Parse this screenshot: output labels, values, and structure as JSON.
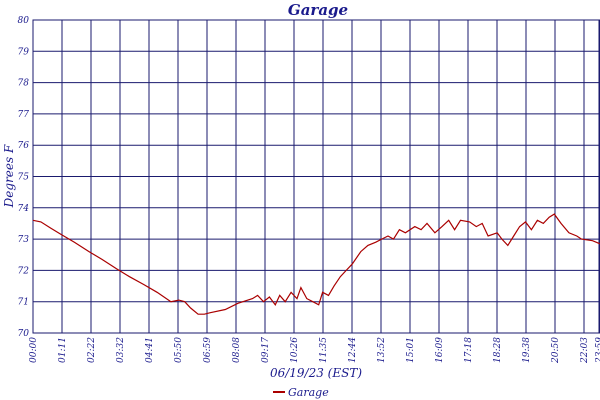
{
  "chart_data": {
    "type": "line",
    "title": "Garage",
    "xlabel": "06/19/23 (EST)",
    "ylabel": "Degrees F",
    "ylim": [
      70,
      80
    ],
    "y_ticks": [
      "70",
      "71",
      "72",
      "73",
      "74",
      "75",
      "76",
      "77",
      "78",
      "79",
      "80"
    ],
    "x_ticks": [
      "00:00",
      "01:11",
      "02:22",
      "03:32",
      "04:41",
      "05:50",
      "06:59",
      "08:08",
      "09:17",
      "10:26",
      "11:35",
      "12:44",
      "13:52",
      "15:01",
      "16:09",
      "17:18",
      "18:28",
      "19:38",
      "20:50",
      "22:03",
      "23:12",
      "23:59"
    ],
    "grid": true,
    "legend_position": "bottom-center",
    "series": [
      {
        "name": "Garage",
        "color": "#aa0000",
        "x": [
          "00:00",
          "00:20",
          "00:45",
          "01:11",
          "01:45",
          "02:22",
          "02:55",
          "03:32",
          "04:05",
          "04:41",
          "05:15",
          "05:50",
          "06:10",
          "06:25",
          "06:40",
          "06:59",
          "07:15",
          "07:30",
          "08:08",
          "08:40",
          "09:17",
          "09:30",
          "09:45",
          "10:00",
          "10:15",
          "10:26",
          "10:40",
          "10:55",
          "11:10",
          "11:20",
          "11:35",
          "11:50",
          "12:05",
          "12:15",
          "12:30",
          "12:44",
          "13:00",
          "13:15",
          "13:30",
          "13:52",
          "14:10",
          "14:30",
          "14:45",
          "15:01",
          "15:15",
          "15:30",
          "15:45",
          "16:09",
          "16:25",
          "16:40",
          "17:00",
          "17:18",
          "17:35",
          "17:50",
          "18:05",
          "18:28",
          "18:45",
          "19:00",
          "19:15",
          "19:38",
          "19:50",
          "20:05",
          "20:20",
          "20:35",
          "20:50",
          "21:05",
          "21:20",
          "21:35",
          "21:50",
          "22:03",
          "22:20",
          "22:40",
          "23:00",
          "23:12",
          "23:40",
          "23:59"
        ],
        "y": [
          73.6,
          73.55,
          73.35,
          73.15,
          72.9,
          72.6,
          72.35,
          72.05,
          71.8,
          71.55,
          71.3,
          71.0,
          71.05,
          71.0,
          70.8,
          70.6,
          70.6,
          70.65,
          70.75,
          70.95,
          71.1,
          71.2,
          71.0,
          71.15,
          70.9,
          71.2,
          71.0,
          71.3,
          71.1,
          71.45,
          71.1,
          71.0,
          70.9,
          71.3,
          71.2,
          71.5,
          71.8,
          72.0,
          72.2,
          72.6,
          72.8,
          72.9,
          73.0,
          73.1,
          73.0,
          73.3,
          73.2,
          73.4,
          73.3,
          73.5,
          73.2,
          73.4,
          73.6,
          73.3,
          73.6,
          73.55,
          73.4,
          73.5,
          73.1,
          73.2,
          73.0,
          72.8,
          73.1,
          73.4,
          73.55,
          73.3,
          73.6,
          73.5,
          73.7,
          73.8,
          73.5,
          73.2,
          73.1,
          73.0,
          72.95,
          72.85
        ]
      }
    ]
  }
}
